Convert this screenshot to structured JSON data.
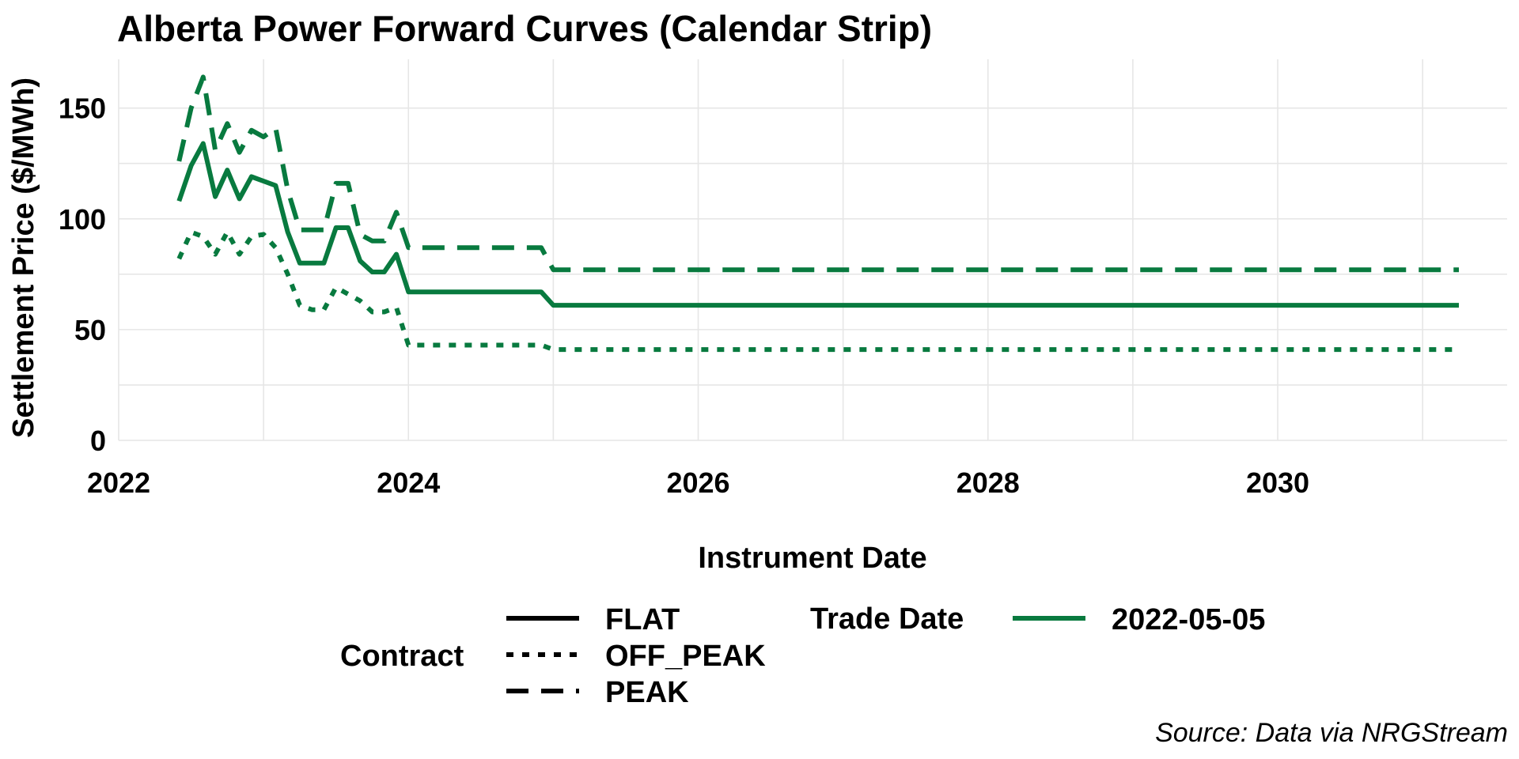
{
  "chart_data": {
    "type": "line",
    "title": "Alberta Power Forward Curves (Calendar Strip)",
    "xlabel": "Instrument Date",
    "ylabel": "Settlement Price ($/MWh)",
    "caption": "Source: Data via NRGStream",
    "x_ticks": [
      "2022",
      "2024",
      "2026",
      "2028",
      "2030"
    ],
    "y_ticks": [
      "0",
      "50",
      "100",
      "150"
    ],
    "xlim": [
      "2022-01-01",
      "2031-08-01"
    ],
    "ylim": [
      0,
      172
    ],
    "grid": true,
    "legend_position": "bottom",
    "legend": {
      "contract_title": "Contract",
      "contract_entries": [
        {
          "label": "FLAT",
          "dash": "solid"
        },
        {
          "label": "OFF_PEAK",
          "dash": "dotted"
        },
        {
          "label": "PEAK",
          "dash": "dashed"
        }
      ],
      "trade_date_title": "Trade Date",
      "trade_date_entries": [
        {
          "label": "2022-05-05",
          "color": "#087a3f"
        }
      ]
    },
    "colors": {
      "series": "#087a3f",
      "grid": "#e6e6e6"
    },
    "series": [
      {
        "name": "FLAT",
        "dash": "solid",
        "points": [
          [
            "2022-06-01",
            108
          ],
          [
            "2022-07-01",
            124
          ],
          [
            "2022-08-01",
            134
          ],
          [
            "2022-09-01",
            110
          ],
          [
            "2022-10-01",
            122
          ],
          [
            "2022-11-01",
            109
          ],
          [
            "2022-12-01",
            119
          ],
          [
            "2023-01-01",
            117
          ],
          [
            "2023-02-01",
            115
          ],
          [
            "2023-03-01",
            94
          ],
          [
            "2023-04-01",
            80
          ],
          [
            "2023-05-01",
            80
          ],
          [
            "2023-06-01",
            80
          ],
          [
            "2023-07-01",
            96
          ],
          [
            "2023-08-01",
            96
          ],
          [
            "2023-09-01",
            81
          ],
          [
            "2023-10-01",
            76
          ],
          [
            "2023-11-01",
            76
          ],
          [
            "2023-12-01",
            84
          ],
          [
            "2024-01-01",
            67
          ],
          [
            "2024-12-01",
            67
          ],
          [
            "2025-01-01",
            61
          ],
          [
            "2031-04-01",
            61
          ]
        ]
      },
      {
        "name": "OFF_PEAK",
        "dash": "dotted",
        "points": [
          [
            "2022-06-01",
            82
          ],
          [
            "2022-07-01",
            94
          ],
          [
            "2022-08-01",
            92
          ],
          [
            "2022-09-01",
            84
          ],
          [
            "2022-10-01",
            94
          ],
          [
            "2022-11-01",
            84
          ],
          [
            "2022-12-01",
            92
          ],
          [
            "2023-01-01",
            93
          ],
          [
            "2023-02-01",
            87
          ],
          [
            "2023-03-01",
            75
          ],
          [
            "2023-04-01",
            61
          ],
          [
            "2023-05-01",
            59
          ],
          [
            "2023-06-01",
            59
          ],
          [
            "2023-07-01",
            69
          ],
          [
            "2023-08-01",
            66
          ],
          [
            "2023-09-01",
            63
          ],
          [
            "2023-10-01",
            58
          ],
          [
            "2023-11-01",
            58
          ],
          [
            "2023-12-01",
            60
          ],
          [
            "2024-01-01",
            43
          ],
          [
            "2024-12-01",
            43
          ],
          [
            "2025-01-01",
            41
          ],
          [
            "2031-04-01",
            41
          ]
        ]
      },
      {
        "name": "PEAK",
        "dash": "dashed",
        "points": [
          [
            "2022-06-01",
            126
          ],
          [
            "2022-07-01",
            150
          ],
          [
            "2022-08-01",
            164
          ],
          [
            "2022-09-01",
            131
          ],
          [
            "2022-10-01",
            143
          ],
          [
            "2022-11-01",
            130
          ],
          [
            "2022-12-01",
            140
          ],
          [
            "2023-01-01",
            137
          ],
          [
            "2023-02-01",
            141
          ],
          [
            "2023-03-01",
            113
          ],
          [
            "2023-04-01",
            95
          ],
          [
            "2023-05-01",
            95
          ],
          [
            "2023-06-01",
            95
          ],
          [
            "2023-07-01",
            116
          ],
          [
            "2023-08-01",
            116
          ],
          [
            "2023-09-01",
            93
          ],
          [
            "2023-10-01",
            90
          ],
          [
            "2023-11-01",
            90
          ],
          [
            "2023-12-01",
            103
          ],
          [
            "2024-01-01",
            87
          ],
          [
            "2024-12-01",
            87
          ],
          [
            "2025-01-01",
            77
          ],
          [
            "2031-04-01",
            77
          ]
        ]
      }
    ]
  }
}
